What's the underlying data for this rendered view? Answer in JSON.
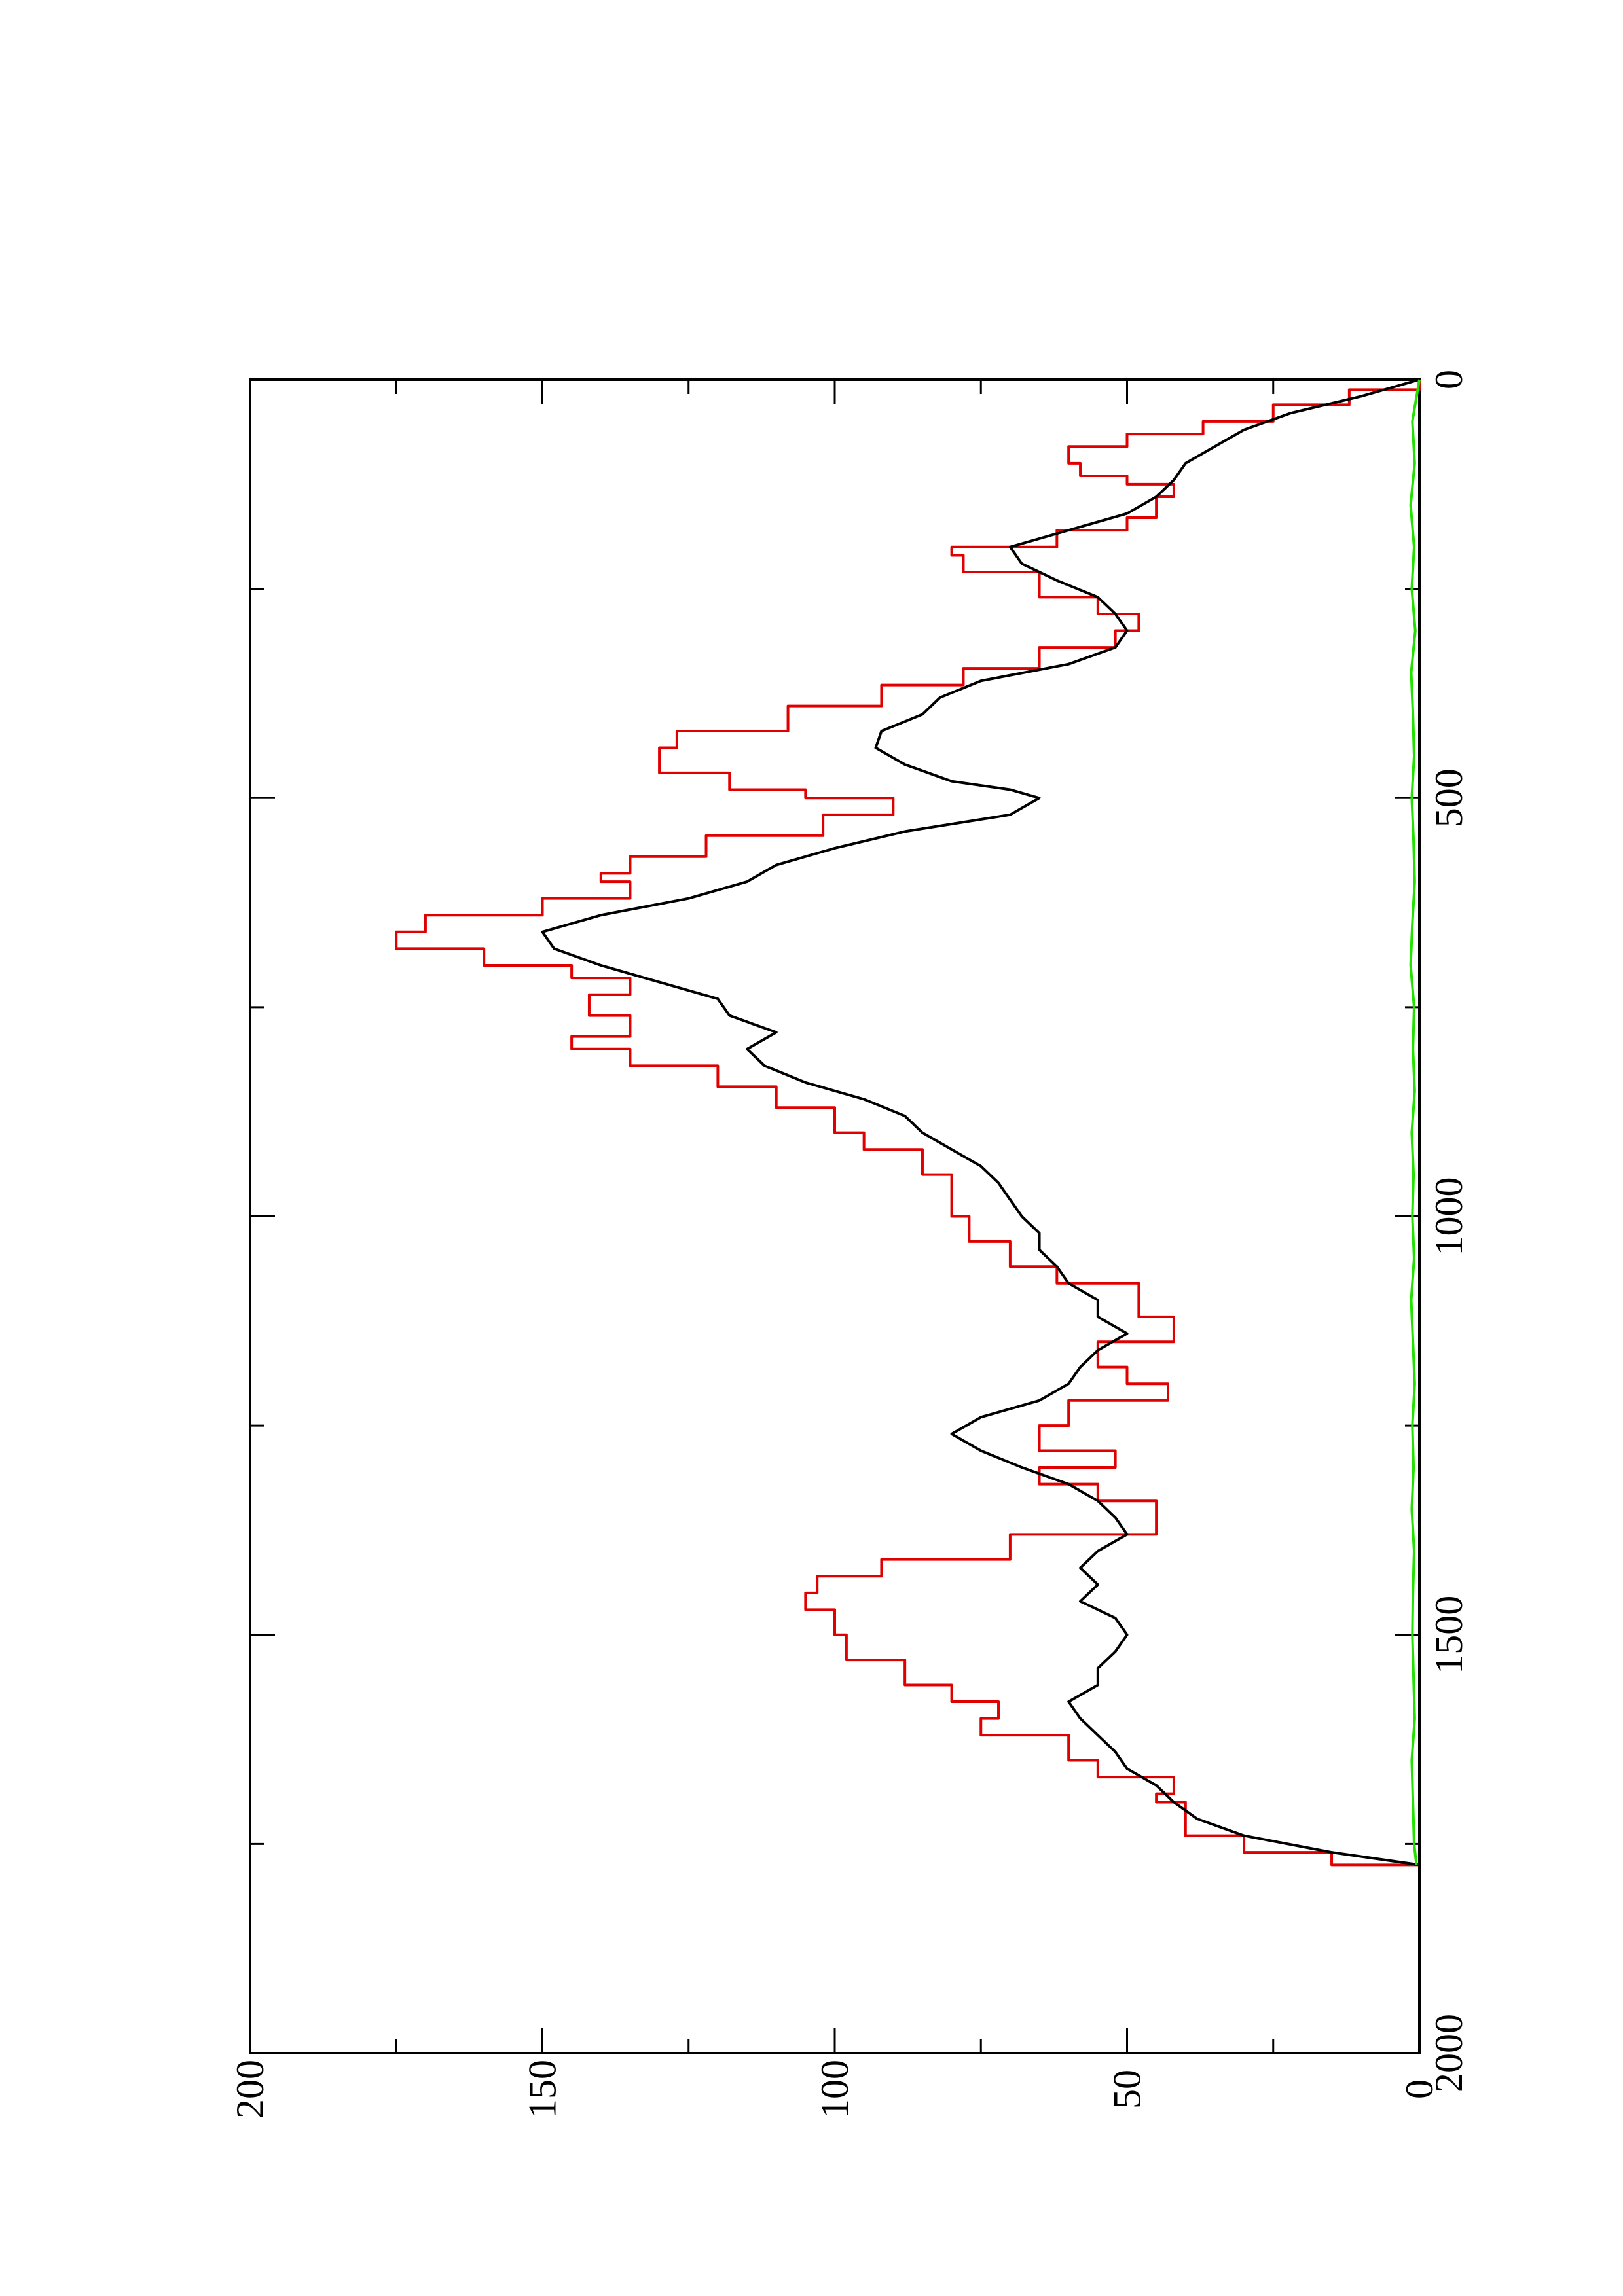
{
  "chart_data": {
    "type": "line",
    "orientation": "rotated-90-ccw",
    "title": "",
    "xlabel": "",
    "ylabel": "",
    "xlim": [
      0,
      2000
    ],
    "ylim": [
      0,
      200
    ],
    "x_ticks": [
      0,
      500,
      1000,
      1500,
      2000
    ],
    "x_tick_labels": [
      "0",
      "500",
      "1000",
      "1500",
      "2000"
    ],
    "y_ticks": [
      0,
      50,
      100,
      150,
      200
    ],
    "y_tick_labels": [
      "0",
      "50",
      "100",
      "150",
      "200"
    ],
    "grid": false,
    "legend": "none",
    "series": [
      {
        "color": "#e00000",
        "style": "step",
        "x": [
          0,
          12,
          30,
          50,
          65,
          80,
          100,
          115,
          125,
          140,
          165,
          180,
          200,
          210,
          230,
          260,
          280,
          300,
          320,
          345,
          365,
          390,
          420,
          440,
          470,
          490,
          500,
          520,
          545,
          570,
          590,
          600,
          620,
          640,
          660,
          680,
          700,
          715,
          735,
          760,
          785,
          800,
          820,
          845,
          870,
          900,
          920,
          950,
          980,
          1000,
          1030,
          1060,
          1080,
          1100,
          1120,
          1150,
          1180,
          1200,
          1220,
          1250,
          1280,
          1300,
          1320,
          1340,
          1380,
          1410,
          1430,
          1450,
          1470,
          1500,
          1530,
          1560,
          1580,
          1600,
          1620,
          1650,
          1670,
          1690,
          1700,
          1720,
          1740,
          1760,
          1775
        ],
        "y": [
          0,
          12,
          25,
          37,
          50,
          60,
          58,
          50,
          42,
          45,
          50,
          62,
          80,
          78,
          65,
          55,
          48,
          52,
          65,
          78,
          92,
          108,
          127,
          130,
          118,
          105,
          90,
          102,
          122,
          135,
          140,
          135,
          150,
          170,
          175,
          160,
          145,
          135,
          142,
          135,
          145,
          135,
          120,
          110,
          100,
          95,
          85,
          80,
          80,
          77,
          70,
          62,
          48,
          48,
          42,
          55,
          50,
          43,
          60,
          65,
          52,
          65,
          55,
          45,
          70,
          92,
          103,
          105,
          100,
          98,
          88,
          80,
          72,
          75,
          60,
          55,
          42,
          45,
          40,
          40,
          30,
          15,
          0
        ]
      },
      {
        "color": "#000000",
        "style": "line",
        "x": [
          0,
          20,
          40,
          60,
          80,
          100,
          120,
          140,
          160,
          180,
          200,
          220,
          240,
          260,
          280,
          300,
          320,
          340,
          360,
          380,
          400,
          420,
          440,
          460,
          480,
          490,
          500,
          520,
          540,
          560,
          580,
          600,
          620,
          640,
          660,
          680,
          700,
          720,
          740,
          760,
          780,
          800,
          820,
          840,
          860,
          880,
          900,
          920,
          940,
          960,
          980,
          1000,
          1020,
          1040,
          1060,
          1080,
          1100,
          1120,
          1140,
          1160,
          1180,
          1200,
          1220,
          1240,
          1260,
          1280,
          1300,
          1320,
          1340,
          1360,
          1380,
          1400,
          1420,
          1440,
          1460,
          1480,
          1500,
          1520,
          1540,
          1560,
          1580,
          1600,
          1620,
          1640,
          1660,
          1680,
          1700,
          1720,
          1740,
          1760,
          1775
        ],
        "y": [
          0,
          10,
          22,
          30,
          35,
          40,
          42,
          45,
          50,
          60,
          70,
          68,
          62,
          55,
          52,
          50,
          52,
          60,
          75,
          82,
          85,
          92,
          93,
          88,
          80,
          70,
          65,
          70,
          88,
          100,
          110,
          115,
          125,
          140,
          150,
          148,
          140,
          130,
          120,
          118,
          110,
          115,
          112,
          105,
          95,
          88,
          85,
          80,
          75,
          72,
          70,
          68,
          65,
          65,
          62,
          60,
          55,
          55,
          50,
          55,
          58,
          60,
          65,
          75,
          80,
          75,
          68,
          60,
          55,
          52,
          50,
          55,
          58,
          55,
          58,
          52,
          50,
          52,
          55,
          55,
          60,
          58,
          55,
          52,
          50,
          45,
          42,
          38,
          30,
          15,
          0
        ]
      },
      {
        "color": "#22e000",
        "style": "line",
        "x": [
          0,
          50,
          100,
          150,
          200,
          250,
          300,
          350,
          400,
          450,
          500,
          550,
          600,
          650,
          700,
          750,
          800,
          850,
          900,
          950,
          1000,
          1050,
          1100,
          1150,
          1200,
          1250,
          1300,
          1350,
          1400,
          1450,
          1500,
          1550,
          1600,
          1650,
          1700,
          1750,
          1775
        ],
        "y": [
          0,
          1.2,
          0.8,
          1.5,
          0.9,
          1.3,
          0.7,
          1.4,
          1.1,
          0.9,
          1.3,
          1.0,
          0.8,
          1.2,
          1.5,
          0.9,
          1.1,
          0.8,
          1.3,
          1.0,
          1.2,
          0.9,
          1.4,
          1.1,
          0.8,
          1.2,
          1.0,
          1.3,
          0.9,
          1.1,
          1.2,
          1.0,
          0.8,
          1.3,
          1.1,
          0.9,
          0.5
        ]
      }
    ]
  }
}
